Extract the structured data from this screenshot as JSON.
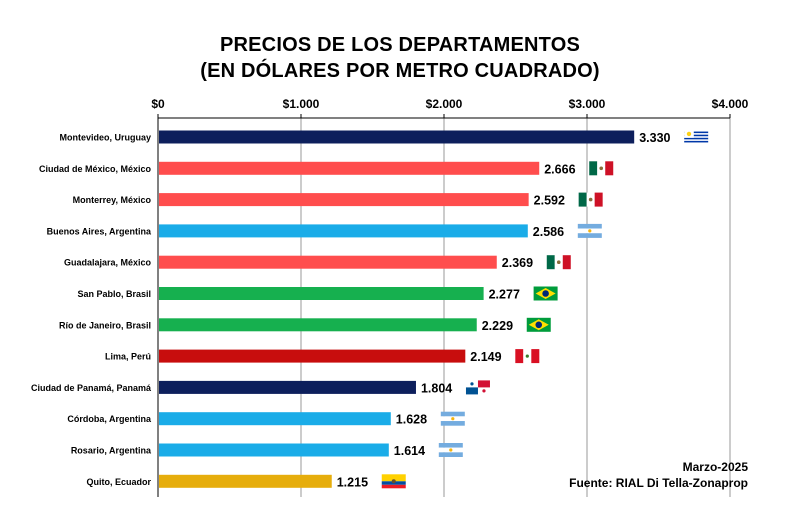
{
  "chart_data": {
    "type": "bar",
    "orientation": "horizontal",
    "title": "PRECIOS DE LOS DEPARTAMENTOS",
    "subtitle": "(EN DÓLARES POR METRO CUADRADO)",
    "xlabel": "",
    "ylabel": "",
    "xlim": [
      0,
      4000
    ],
    "x_ticks": [
      {
        "value": 0,
        "label": "$0"
      },
      {
        "value": 1000,
        "label": "$1.000"
      },
      {
        "value": 2000,
        "label": "$2.000"
      },
      {
        "value": 3000,
        "label": "$3.000"
      },
      {
        "value": 4000,
        "label": "$4.000"
      }
    ],
    "x_axis_position": "top",
    "grid": true,
    "categories": [
      "Montevideo, Uruguay",
      "Ciudad de México, México",
      "Monterrey, México",
      "Buenos Aires, Argentina",
      "Guadalajara, México",
      "San Pablo, Brasil",
      "Río de Janeiro, Brasil",
      "Lima, Perú",
      "Ciudad de Panamá, Panamá",
      "Córdoba, Argentina",
      "Rosario, Argentina",
      "Quito, Ecuador"
    ],
    "values": [
      3330,
      2666,
      2592,
      2586,
      2369,
      2277,
      2229,
      2149,
      1804,
      1628,
      1614,
      1215
    ],
    "value_labels": [
      "3.330",
      "2.666",
      "2.592",
      "2.586",
      "2.369",
      "2.277",
      "2.229",
      "2.149",
      "1.804",
      "1.628",
      "1.614",
      "1.215"
    ],
    "colors": [
      "#0d1f5c",
      "#ff4d4d",
      "#ff4d4d",
      "#1aace8",
      "#ff4d4d",
      "#16b04f",
      "#16b04f",
      "#c80d0d",
      "#0d1f5c",
      "#1aace8",
      "#1aace8",
      "#e6ad0c"
    ],
    "flags": [
      "uruguay-flag",
      "mexico-flag",
      "mexico-flag",
      "argentina-flag",
      "mexico-flag",
      "brazil-flag",
      "brazil-flag",
      "peru-flag",
      "panama-flag",
      "argentina-flag",
      "argentina-flag",
      "ecuador-flag"
    ]
  },
  "notes": {
    "date": "Marzo-2025",
    "source": "Fuente: RIAL Di Tella-Zonaprop"
  }
}
